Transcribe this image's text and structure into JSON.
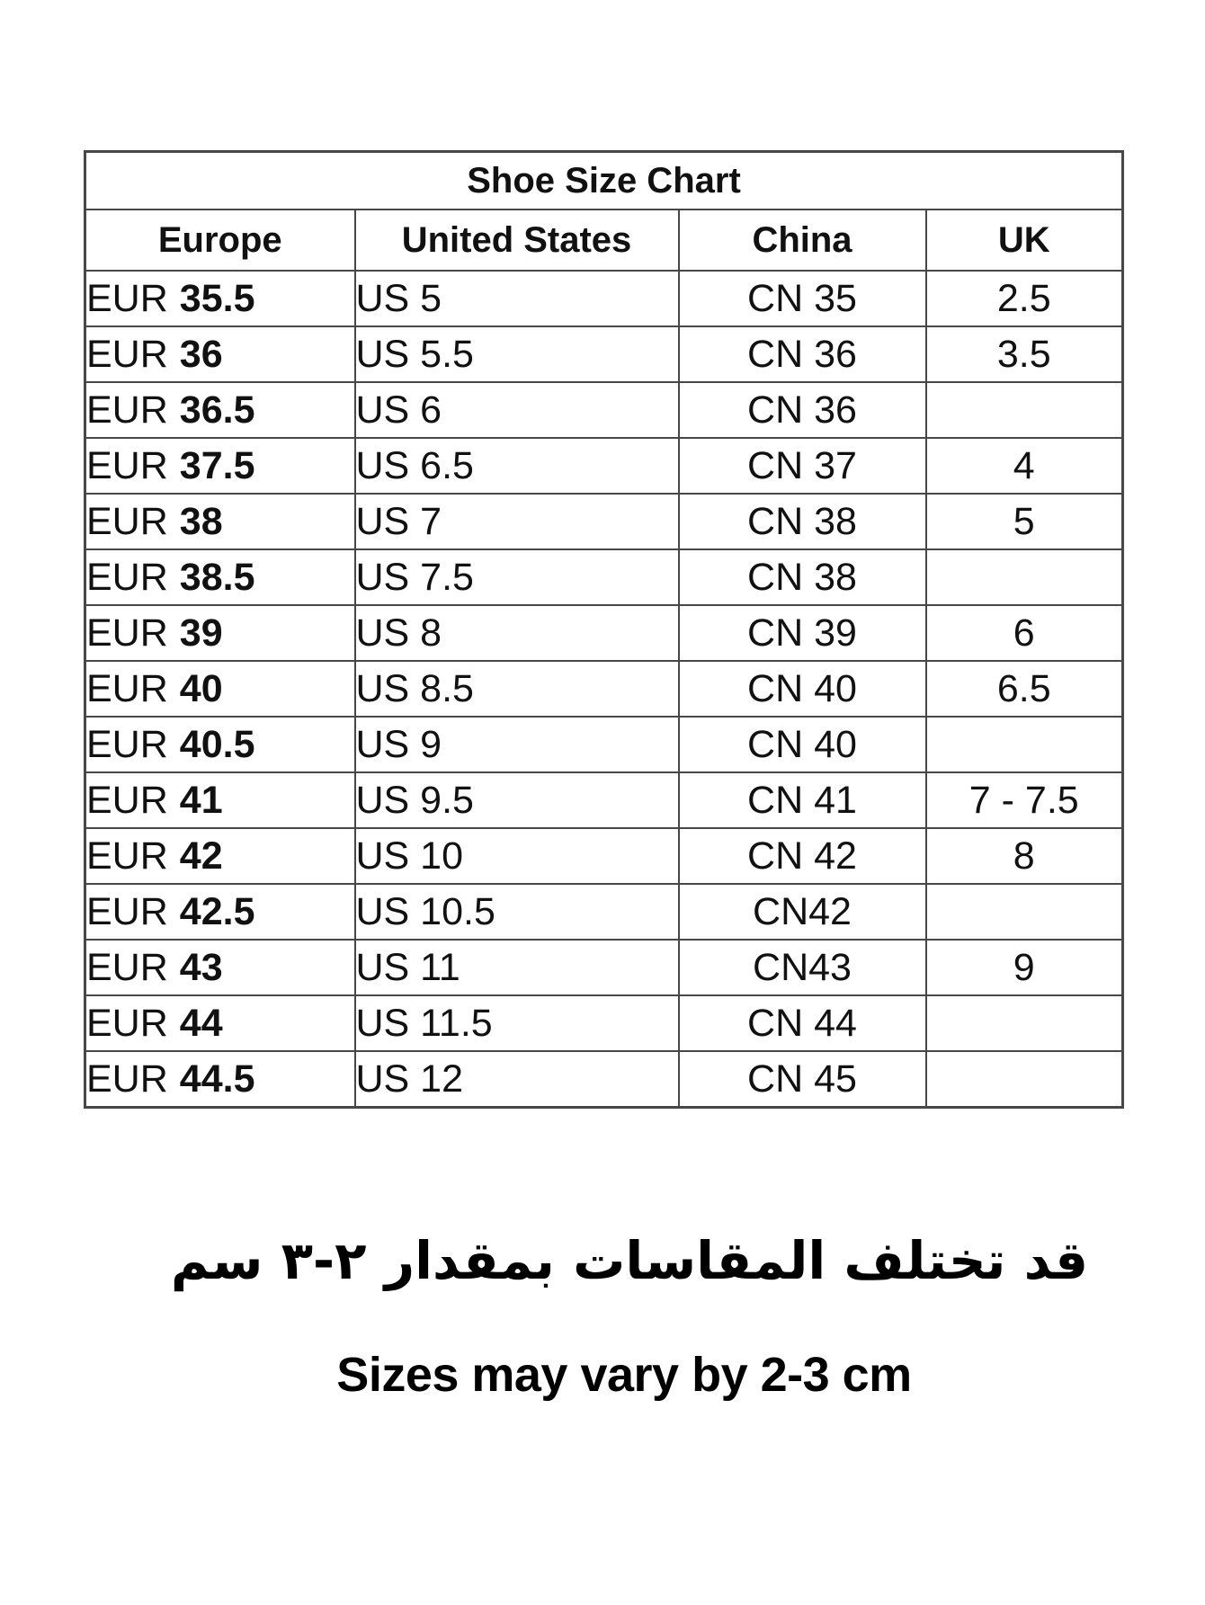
{
  "title": "Shoe Size Chart",
  "table": {
    "columns": [
      "Europe",
      "United States",
      "China",
      "UK"
    ],
    "rows": [
      {
        "eur_label": "EUR",
        "eur_size": "35.5",
        "us": "US 5",
        "cn": "CN 35",
        "uk": "2.5"
      },
      {
        "eur_label": "EUR",
        "eur_size": "36",
        "us": "US 5.5",
        "cn": "CN 36",
        "uk": "3.5"
      },
      {
        "eur_label": "EUR",
        "eur_size": "36.5",
        "us": "US 6",
        "cn": "CN 36",
        "uk": ""
      },
      {
        "eur_label": "EUR",
        "eur_size": "37.5",
        "us": "US 6.5",
        "cn": "CN 37",
        "uk": "4"
      },
      {
        "eur_label": "EUR",
        "eur_size": "38",
        "us": "US 7",
        "cn": "CN 38",
        "uk": "5"
      },
      {
        "eur_label": "EUR",
        "eur_size": "38.5",
        "us": "US 7.5",
        "cn": "CN 38",
        "uk": ""
      },
      {
        "eur_label": "EUR",
        "eur_size": "39",
        "us": "US 8",
        "cn": "CN 39",
        "uk": "6"
      },
      {
        "eur_label": "EUR",
        "eur_size": "40",
        "us": "US 8.5",
        "cn": "CN 40",
        "uk": "6.5"
      },
      {
        "eur_label": "EUR",
        "eur_size": "40.5",
        "us": "US 9",
        "cn": "CN 40",
        "uk": ""
      },
      {
        "eur_label": "EUR",
        "eur_size": "41",
        "us": "US 9.5",
        "cn": "CN 41",
        "uk": "7 - 7.5"
      },
      {
        "eur_label": "EUR",
        "eur_size": "42",
        "us": "US 10",
        "cn": "CN 42",
        "uk": "8"
      },
      {
        "eur_label": "EUR",
        "eur_size": "42.5",
        "us": "US 10.5",
        "cn": "CN42",
        "uk": ""
      },
      {
        "eur_label": "EUR",
        "eur_size": "43",
        "us": "US 11",
        "cn": "CN43",
        "uk": "9"
      },
      {
        "eur_label": "EUR",
        "eur_size": "44",
        "us": "US 11.5",
        "cn": "CN 44",
        "uk": ""
      },
      {
        "eur_label": "EUR",
        "eur_size": "44.5",
        "us": "US 12",
        "cn": "CN 45",
        "uk": ""
      }
    ]
  },
  "notes": {
    "arabic": "قد تختلف المقاسات بمقدار ٢-٣ سم",
    "english": "Sizes may vary by 2-3 cm"
  },
  "colors": {
    "background": "#ffffff",
    "border": "#474747",
    "text": "#111111"
  }
}
